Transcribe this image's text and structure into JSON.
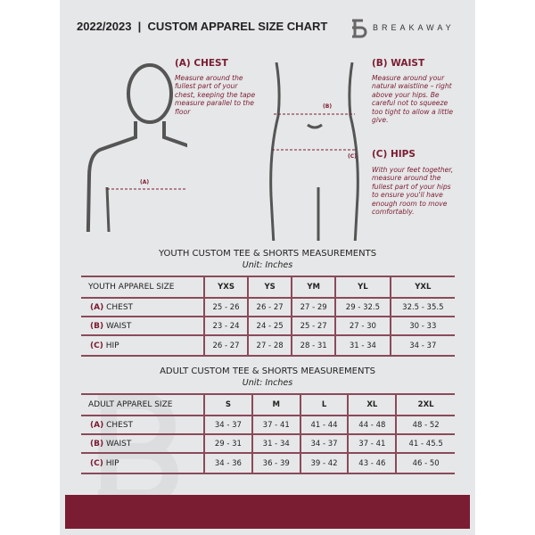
{
  "header": {
    "title": "2022/2023  |  CUSTOM APPAREL SIZE CHART",
    "brand": "BREAKAWAY"
  },
  "measures": {
    "chest": {
      "title": "(A) CHEST",
      "desc": "Measure around the fullest part of your chest, keeping the tape measure parallel to the floor",
      "marker": "(A)"
    },
    "waist": {
      "title": "(B) WAIST",
      "desc": "Measure around your natural waistline – right above your hips. Be careful not to squeeze too tight to allow a little give.",
      "marker": "(B)"
    },
    "hips": {
      "title": "(C) HIPS",
      "desc": "With your feet together, measure around the fullest part of your hips to ensure you'll have enough room to move comfortably.",
      "marker": "(C)"
    }
  },
  "youth": {
    "title": "YOUTH CUSTOM TEE & SHORTS MEASUREMENTS",
    "unit": "Unit: Inches",
    "header": "YOUTH APPAREL SIZE",
    "sizes": [
      "YXS",
      "YS",
      "YM",
      "YL",
      "YXL"
    ],
    "rows": [
      {
        "code": "(A)",
        "name": "CHEST",
        "values": [
          "25 - 26",
          "26 - 27",
          "27 - 29",
          "29 - 32.5",
          "32.5 - 35.5"
        ]
      },
      {
        "code": "(B)",
        "name": "WAIST",
        "values": [
          "23 - 24",
          "24 - 25",
          "25 - 27",
          "27 - 30",
          "30 - 33"
        ]
      },
      {
        "code": "(C)",
        "name": "HIP",
        "values": [
          "26 - 27",
          "27 - 28",
          "28 - 31",
          "31 - 34",
          "34 - 37"
        ]
      }
    ]
  },
  "adult": {
    "title": "ADULT CUSTOM TEE & SHORTS MEASUREMENTS",
    "unit": "Unit: Inches",
    "header": "ADULT APPAREL SIZE",
    "sizes": [
      "S",
      "M",
      "L",
      "XL",
      "2XL"
    ],
    "rows": [
      {
        "code": "(A)",
        "name": "CHEST",
        "values": [
          "34 - 37",
          "37 - 41",
          "41 - 44",
          "44 - 48",
          "48 - 52"
        ]
      },
      {
        "code": "(B)",
        "name": "WAIST",
        "values": [
          "29 - 31",
          "31 - 34",
          "34 - 37",
          "37 - 41",
          "41 - 45.5"
        ]
      },
      {
        "code": "(C)",
        "name": "HIP",
        "values": [
          "34 - 36",
          "36 - 39",
          "39 - 42",
          "43 - 46",
          "46 - 50"
        ]
      }
    ]
  },
  "colors": {
    "accent": "#7a1c32",
    "background": "#e6e7e8"
  }
}
